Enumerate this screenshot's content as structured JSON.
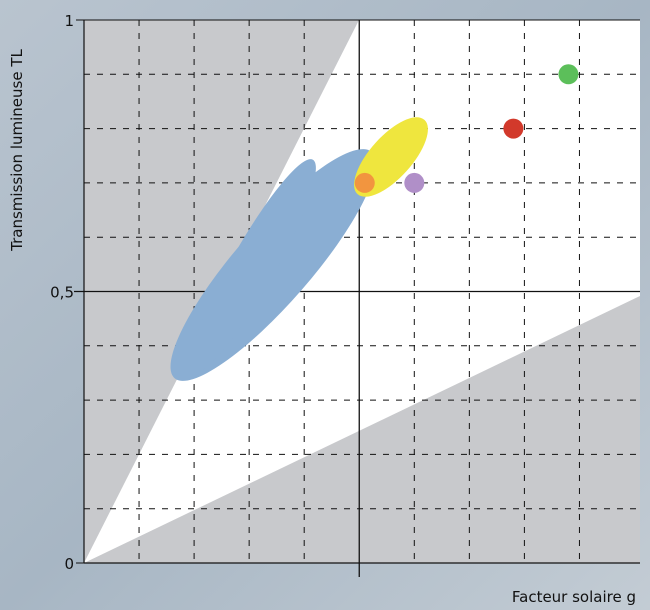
{
  "chart_data": {
    "type": "scatter",
    "y_label": "Transmission lumineuse TL",
    "x_label": "Facteur solaire g",
    "x": [
      0.88,
      0.78,
      0.6,
      0.51
    ],
    "values": [
      0.9,
      0.8,
      0.7,
      0.7
    ],
    "colors": [
      "#5cbf5a",
      "#d2392b",
      "#b08fc8",
      "#f2953f"
    ],
    "xlim": [
      0,
      1.01
    ],
    "ylim": [
      0,
      1
    ],
    "yticks": [
      0,
      {
        "value": 0.5,
        "label": "0,5"
      },
      1
    ],
    "xgrid": [
      0.1,
      0.2,
      0.3,
      0.4,
      0.5,
      0.6,
      0.7,
      0.8,
      0.9
    ],
    "ygrid": [
      0.1,
      0.2,
      0.3,
      0.4,
      0.5,
      0.6,
      0.7,
      0.8,
      0.9
    ]
  }
}
